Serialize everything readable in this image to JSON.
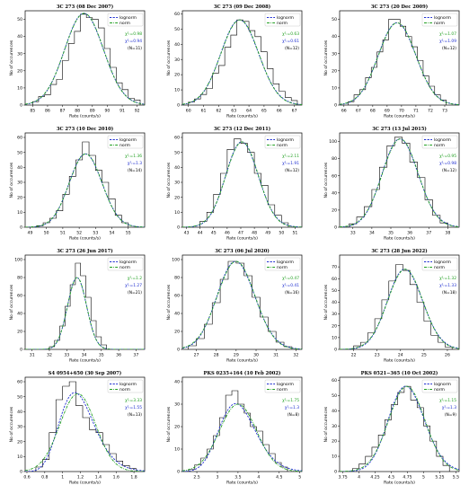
{
  "figure": {
    "xlabel": "Rate (counts/s)",
    "ylabel": "No of occurences",
    "legend": {
      "lognorm_label": "lognorm",
      "norm_label": "norm",
      "position": "top-right"
    },
    "colors": {
      "lognorm": "#1f2fd0",
      "norm": "#22a022",
      "hist": "#000000"
    }
  },
  "chart_data": [
    {
      "type": "bar",
      "title": "3C 273 (08 Dec 2007)",
      "xlim": [
        84.5,
        92.5
      ],
      "ylim": [
        0,
        55
      ],
      "xticks": [
        85,
        86,
        87,
        88,
        89,
        90,
        91,
        92
      ],
      "yticks": [
        0,
        10,
        20,
        30,
        40,
        50
      ],
      "fit": {
        "mean": 88.45,
        "sigma": 1.3,
        "amp": 53.5
      },
      "bins": [
        85.0,
        85.4,
        85.8,
        86.2,
        86.6,
        87.0,
        87.4,
        87.8,
        88.2,
        88.6,
        89.0,
        89.4,
        89.8,
        90.2,
        90.6,
        91.0,
        91.4,
        91.8,
        92.2
      ],
      "counts": [
        2,
        5,
        6,
        12,
        15,
        26,
        36,
        43,
        53,
        51,
        50,
        45,
        33,
        22,
        13,
        9,
        4,
        3
      ],
      "stats": {
        "chi_norm": "χ²ᵣ=0.98",
        "chi_lognorm": "χ²ᵣ=0.94",
        "n": "(N=11)"
      }
    },
    {
      "type": "bar",
      "title": "3C 273 (09 Dec 2008)",
      "xlim": [
        59.6,
        67.5
      ],
      "ylim": [
        0,
        62
      ],
      "xticks": [
        60,
        61,
        62,
        63,
        64,
        65,
        66,
        67
      ],
      "yticks": [
        0,
        10,
        20,
        30,
        40,
        50,
        60
      ],
      "fit": {
        "mean": 63.4,
        "sigma": 1.25,
        "amp": 56
      },
      "bins": [
        60.0,
        60.4,
        60.8,
        61.2,
        61.6,
        62.0,
        62.4,
        62.8,
        63.2,
        63.6,
        64.0,
        64.4,
        64.8,
        65.2,
        65.6,
        66.0,
        66.4,
        66.8,
        67.2
      ],
      "counts": [
        2,
        4,
        7,
        11,
        21,
        26,
        38,
        46,
        56,
        55,
        49,
        45,
        35,
        24,
        14,
        9,
        5,
        3
      ],
      "stats": {
        "chi_norm": "χ²ᵣ=0.63",
        "chi_lognorm": "χ²ᵣ=0.61",
        "n": "(N=12)"
      }
    },
    {
      "type": "bar",
      "title": "3C 273 (20 Dec 2009)",
      "xlim": [
        65.7,
        74.0
      ],
      "ylim": [
        0,
        55
      ],
      "xticks": [
        66,
        67,
        68,
        69,
        70,
        71,
        72,
        73
      ],
      "yticks": [
        0,
        10,
        20,
        30,
        40,
        50
      ],
      "fit": {
        "mean": 69.7,
        "sigma": 1.3,
        "amp": 48
      },
      "bins": [
        66.3,
        66.7,
        67.1,
        67.5,
        67.9,
        68.3,
        68.7,
        69.1,
        69.5,
        69.9,
        70.3,
        70.7,
        71.1,
        71.5,
        71.9,
        72.3,
        72.7,
        73.1
      ],
      "counts": [
        2,
        6,
        9,
        16,
        22,
        31,
        38,
        50,
        50,
        46,
        40,
        34,
        26,
        17,
        11,
        6,
        3
      ],
      "stats": {
        "chi_norm": "χ²ᵣ=1.07",
        "chi_lognorm": "χ²ᵣ=1.09",
        "n": "(N=12)"
      }
    },
    {
      "type": "bar",
      "title": "3C 273 (10 Dec 2010)",
      "xlim": [
        48.7,
        56.0
      ],
      "ylim": [
        0,
        63
      ],
      "xticks": [
        49,
        50,
        51,
        52,
        53,
        54,
        55
      ],
      "yticks": [
        0,
        10,
        20,
        30,
        40,
        50,
        60
      ],
      "fit": {
        "mean": 52.4,
        "sigma": 1.0,
        "amp": 49
      },
      "bins": [
        49.4,
        49.8,
        50.2,
        50.6,
        51.0,
        51.4,
        51.8,
        52.2,
        52.6,
        53.0,
        53.4,
        53.8,
        54.2,
        54.6,
        55.0
      ],
      "counts": [
        1,
        3,
        6,
        11,
        22,
        34,
        45,
        57,
        48,
        38,
        30,
        19,
        8,
        3
      ],
      "stats": {
        "chi_norm": "χ²ᵣ=1.36",
        "chi_lognorm": "χ²ᵣ=1.3",
        "n": "(N=14)"
      }
    },
    {
      "type": "bar",
      "title": "3C 273 (12 Dec 2011)",
      "xlim": [
        42.7,
        51.5
      ],
      "ylim": [
        0,
        63
      ],
      "xticks": [
        43,
        44,
        45,
        46,
        47,
        48,
        49,
        50,
        51
      ],
      "yticks": [
        0,
        10,
        20,
        30,
        40,
        50,
        60
      ],
      "fit": {
        "mean": 47.1,
        "sigma": 1.2,
        "amp": 57
      },
      "bins": [
        44.0,
        44.5,
        45.0,
        45.5,
        46.0,
        46.5,
        47.0,
        47.5,
        48.0,
        48.5,
        49.0,
        49.5,
        50.0,
        50.5
      ],
      "counts": [
        4,
        10,
        22,
        36,
        52,
        59,
        56,
        50,
        36,
        28,
        15,
        8,
        3
      ],
      "stats": {
        "chi_norm": "χ²ᵣ=2.11",
        "chi_lognorm": "χ²ᵣ=1.91",
        "n": "(N=12)"
      }
    },
    {
      "type": "bar",
      "title": "3C 273 (13 Jul 2015)",
      "xlim": [
        32.3,
        38.6
      ],
      "ylim": [
        0,
        110
      ],
      "xticks": [
        33,
        34,
        35,
        36,
        37,
        38
      ],
      "yticks": [
        0,
        20,
        40,
        60,
        80,
        100
      ],
      "fit": {
        "mean": 35.5,
        "sigma": 0.95,
        "amp": 103
      },
      "bins": [
        32.8,
        33.2,
        33.6,
        34.0,
        34.4,
        34.8,
        35.2,
        35.6,
        36.0,
        36.4,
        36.8,
        37.2,
        37.6,
        38.0
      ],
      "counts": [
        4,
        12,
        24,
        44,
        70,
        95,
        105,
        98,
        76,
        58,
        32,
        14,
        5
      ],
      "stats": {
        "chi_norm": "χ²ᵣ=0.95",
        "chi_lognorm": "χ²ᵣ=0.98",
        "n": "(N=12)"
      }
    },
    {
      "type": "bar",
      "title": "3C 273 (26 Jun 2017)",
      "xlim": [
        30.6,
        37.5
      ],
      "ylim": [
        0,
        105
      ],
      "xticks": [
        31,
        32,
        33,
        34,
        35,
        36,
        37
      ],
      "yticks": [
        0,
        20,
        40,
        60,
        80,
        100
      ],
      "fit": {
        "mean": 33.6,
        "sigma": 0.55,
        "amp": 80
      },
      "bins": [
        32.0,
        32.3,
        32.6,
        32.9,
        33.2,
        33.5,
        33.8,
        34.1,
        34.4,
        34.7,
        35.0,
        35.3
      ],
      "counts": [
        3,
        10,
        26,
        48,
        72,
        96,
        82,
        58,
        32,
        14,
        5
      ],
      "stats": {
        "chi_norm": "χ²ᵣ=1.2",
        "chi_lognorm": "χ²ᵣ=1.27",
        "n": "(N=21)"
      }
    },
    {
      "type": "bar",
      "title": "3C 273 (06 Jul 2020)",
      "xlim": [
        26.3,
        32.3
      ],
      "ylim": [
        0,
        105
      ],
      "xticks": [
        27,
        28,
        29,
        30,
        31,
        32
      ],
      "yticks": [
        0,
        20,
        40,
        60,
        80,
        100
      ],
      "fit": {
        "mean": 29.0,
        "sigma": 0.95,
        "amp": 98
      },
      "bins": [
        26.6,
        27.0,
        27.4,
        27.8,
        28.2,
        28.6,
        29.0,
        29.4,
        29.8,
        30.2,
        30.6,
        31.0,
        31.4,
        31.8
      ],
      "counts": [
        4,
        12,
        28,
        52,
        78,
        98,
        96,
        82,
        58,
        36,
        20,
        8,
        3
      ],
      "stats": {
        "chi_norm": "χ²ᵣ=0.47",
        "chi_lognorm": "χ²ᵣ=0.41",
        "n": "(N=16)"
      }
    },
    {
      "type": "bar",
      "title": "3C 273 (28 Jun 2022)",
      "xlim": [
        21.4,
        26.5
      ],
      "ylim": [
        0,
        80
      ],
      "xticks": [
        22,
        23,
        24,
        25,
        26
      ],
      "yticks": [
        0,
        10,
        20,
        30,
        40,
        50,
        60,
        70
      ],
      "fit": {
        "mean": 24.2,
        "sigma": 0.75,
        "amp": 68
      },
      "bins": [
        22.0,
        22.3,
        22.6,
        22.9,
        23.2,
        23.5,
        23.8,
        24.1,
        24.4,
        24.7,
        25.0,
        25.3,
        25.6,
        25.9,
        26.2
      ],
      "counts": [
        3,
        6,
        14,
        26,
        42,
        58,
        72,
        67,
        55,
        40,
        24,
        12,
        6,
        2
      ],
      "stats": {
        "chi_norm": "χ²ᵣ=1.32",
        "chi_lognorm": "χ²ᵣ=1.33",
        "n": "(N=18)"
      }
    },
    {
      "type": "bar",
      "title": "S4 0954+650 (30 Sep 2007)",
      "xlim": [
        0.58,
        1.92
      ],
      "ylim": [
        0,
        63
      ],
      "xticks": [
        0.6,
        0.8,
        1.0,
        1.2,
        1.4,
        1.6,
        1.8
      ],
      "yticks": [
        0,
        10,
        20,
        30,
        40,
        50,
        60
      ],
      "fit": {
        "mean": 1.17,
        "sigma": 0.2,
        "amp": 52
      },
      "bins": [
        0.7,
        0.775,
        0.85,
        0.925,
        1.0,
        1.075,
        1.15,
        1.225,
        1.3,
        1.375,
        1.45,
        1.525,
        1.6,
        1.675,
        1.75,
        1.825
      ],
      "counts": [
        3,
        8,
        26,
        48,
        57,
        60,
        44,
        36,
        28,
        26,
        18,
        12,
        7,
        4,
        2
      ],
      "stats": {
        "chi_norm": "χ²ᵣ=3.33",
        "chi_lognorm": "χ²ᵣ=1.55",
        "n": "(N=13)"
      }
    },
    {
      "type": "bar",
      "title": "PKS 0235+164 (10 Feb 2002)",
      "xlim": [
        2.15,
        5.05
      ],
      "ylim": [
        0,
        42
      ],
      "xticks": [
        2.5,
        3.0,
        3.5,
        4.0,
        4.5,
        5.0
      ],
      "yticks": [
        0,
        10,
        20,
        30,
        40
      ],
      "fit": {
        "mean": 3.5,
        "sigma": 0.45,
        "amp": 30
      },
      "bins": [
        2.3,
        2.45,
        2.6,
        2.75,
        2.9,
        3.05,
        3.2,
        3.35,
        3.5,
        3.65,
        3.8,
        3.95,
        4.1,
        4.25,
        4.4,
        4.55,
        4.7
      ],
      "counts": [
        1,
        3,
        6,
        10,
        16,
        24,
        34,
        36,
        30,
        26,
        20,
        18,
        12,
        8,
        4,
        2
      ],
      "stats": {
        "chi_norm": "χ²ᵣ=1.75",
        "chi_lognorm": "χ²ᵣ=1.3",
        "n": "(N=8)"
      }
    },
    {
      "type": "bar",
      "title": "PKS 0521−365 (10 Oct 2002)",
      "xlim": [
        3.7,
        5.55
      ],
      "ylim": [
        0,
        62
      ],
      "xticks": [
        3.75,
        4.0,
        4.25,
        4.5,
        4.75,
        5.0,
        5.25,
        5.5
      ],
      "yticks": [
        0,
        10,
        20,
        30,
        40,
        50,
        60
      ],
      "fit": {
        "mean": 4.74,
        "sigma": 0.28,
        "amp": 56
      },
      "bins": [
        3.9,
        4.0,
        4.1,
        4.2,
        4.3,
        4.4,
        4.5,
        4.6,
        4.7,
        4.8,
        4.9,
        5.0,
        5.1,
        5.2,
        5.3,
        5.4
      ],
      "counts": [
        2,
        5,
        10,
        16,
        24,
        34,
        44,
        52,
        56,
        47,
        42,
        30,
        20,
        10,
        4
      ],
      "stats": {
        "chi_norm": "χ²ᵣ=1.15",
        "chi_lognorm": "χ²ᵣ=1.3",
        "n": "(N=9)"
      }
    }
  ]
}
